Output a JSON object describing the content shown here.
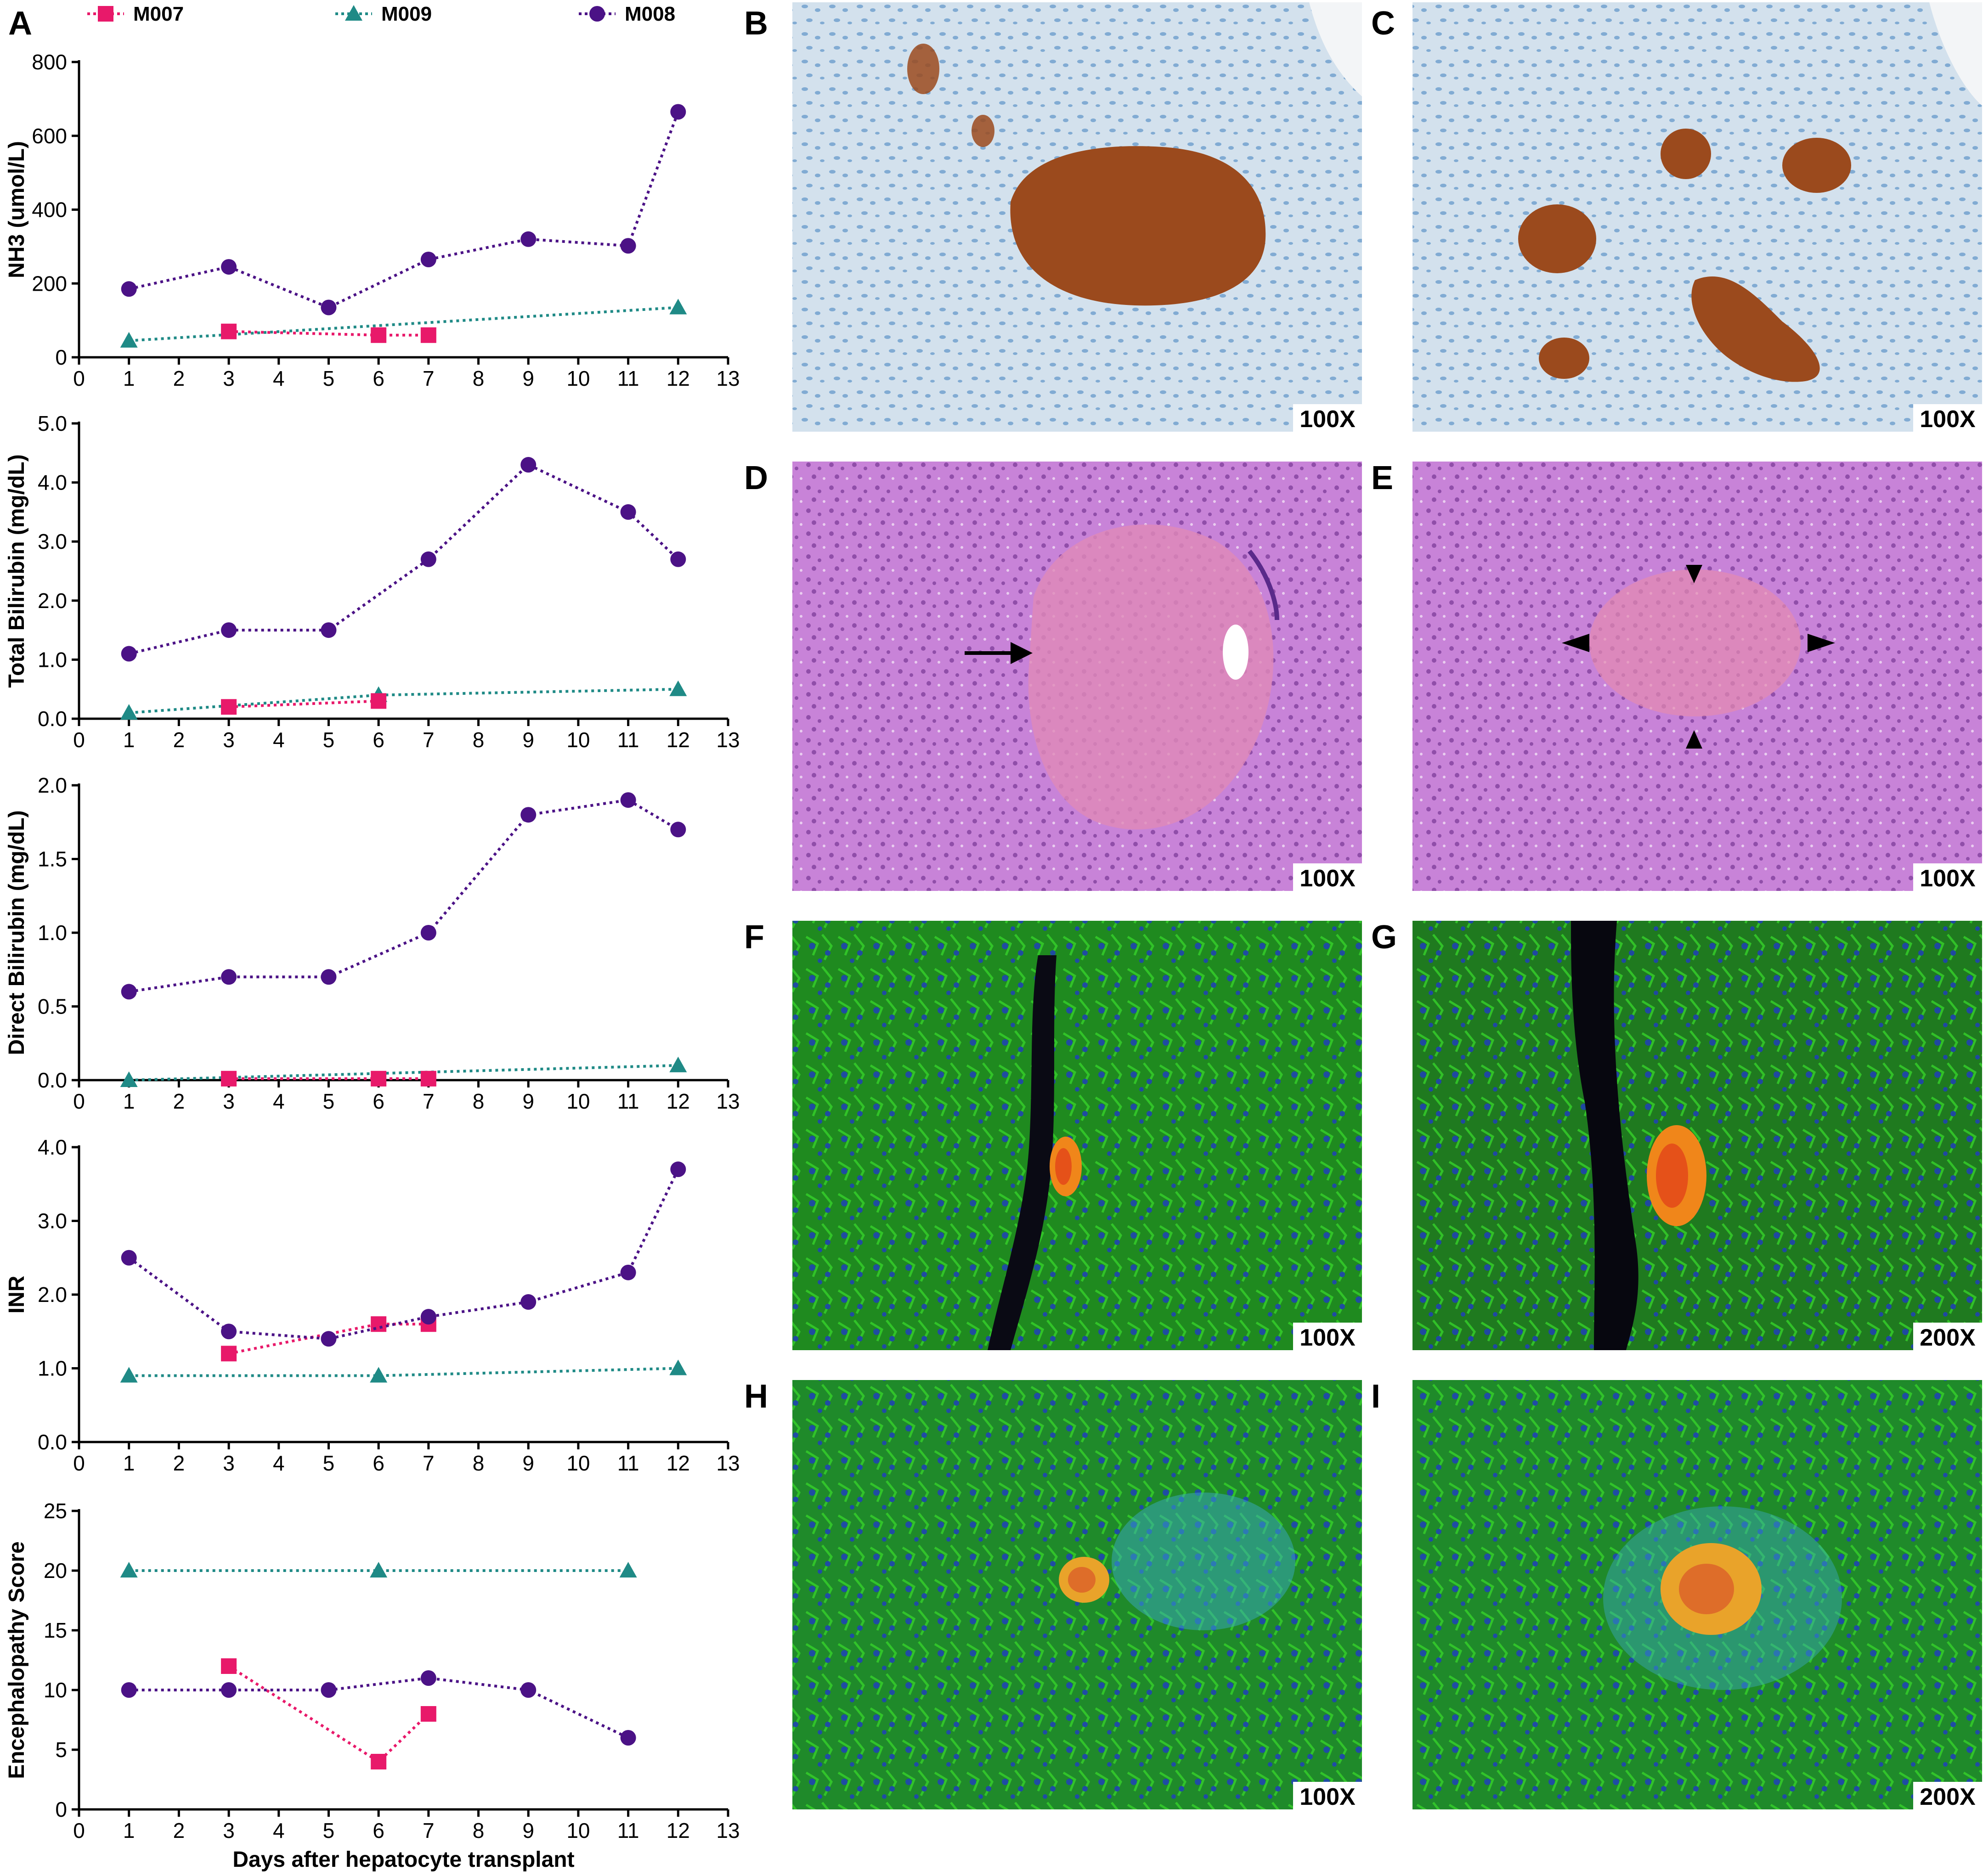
{
  "panel_labels": {
    "a": "A",
    "b": "B",
    "c": "C",
    "d": "D",
    "e": "E",
    "f": "F",
    "g": "G",
    "h": "H",
    "i": "I"
  },
  "legend": [
    {
      "name": "M007",
      "color": "#e8196a",
      "marker": "square"
    },
    {
      "name": "M009",
      "color": "#1f8a86",
      "marker": "triangle"
    },
    {
      "name": "M008",
      "color": "#4b1286",
      "marker": "circle"
    }
  ],
  "colors": {
    "M007": "#e8196a",
    "M009": "#1f8a86",
    "M008": "#4b1286",
    "ihc_background": "#d6e4ef",
    "ihc_nuclei": "#4a87bf",
    "ihc_stain": "#9a4a1c",
    "he_background": "#c97fd6",
    "if_green": "#2fb31f",
    "if_blue": "#1f3cc2",
    "if_orange": "#f08a1a"
  },
  "chart_data": [
    {
      "type": "line",
      "ylabel": "NH3 (umol/L)",
      "xlabel": "",
      "xlim": [
        0,
        13
      ],
      "ylim": [
        0,
        800
      ],
      "x_ticks": [
        "0",
        "1",
        "2",
        "3",
        "4",
        "5",
        "6",
        "7",
        "8",
        "9",
        "10",
        "11",
        "12",
        "13"
      ],
      "y_ticks": [
        "0",
        "200",
        "400",
        "600",
        "800"
      ],
      "series": [
        {
          "name": "M007",
          "x": [
            3,
            6,
            7
          ],
          "y": [
            70,
            60,
            60
          ]
        },
        {
          "name": "M009",
          "x": [
            1,
            12
          ],
          "y": [
            45,
            135
          ]
        },
        {
          "name": "M008",
          "x": [
            1,
            3,
            5,
            7,
            9,
            11,
            12
          ],
          "y": [
            185,
            245,
            135,
            265,
            320,
            302,
            665
          ]
        }
      ]
    },
    {
      "type": "line",
      "ylabel": "Total Bilirubin (mg/dL)",
      "xlabel": "",
      "xlim": [
        0,
        13
      ],
      "ylim": [
        0,
        5
      ],
      "x_ticks": [
        "0",
        "1",
        "2",
        "3",
        "4",
        "5",
        "6",
        "7",
        "8",
        "9",
        "10",
        "11",
        "12",
        "13"
      ],
      "y_ticks": [
        "0.0",
        "1.0",
        "2.0",
        "3.0",
        "4.0",
        "5.0"
      ],
      "series": [
        {
          "name": "M007",
          "x": [
            3,
            6
          ],
          "y": [
            0.2,
            0.3
          ]
        },
        {
          "name": "M009",
          "x": [
            1,
            6,
            12
          ],
          "y": [
            0.1,
            0.4,
            0.5
          ]
        },
        {
          "name": "M008",
          "x": [
            1,
            3,
            5,
            7,
            9,
            11,
            12
          ],
          "y": [
            1.1,
            1.5,
            1.5,
            2.7,
            4.3,
            3.5,
            2.7
          ]
        }
      ]
    },
    {
      "type": "line",
      "ylabel": "Direct Bilirubin (mg/dL)",
      "xlabel": "",
      "xlim": [
        0,
        13
      ],
      "ylim": [
        0,
        2
      ],
      "x_ticks": [
        "0",
        "1",
        "2",
        "3",
        "4",
        "5",
        "6",
        "7",
        "8",
        "9",
        "10",
        "11",
        "12",
        "13"
      ],
      "y_ticks": [
        "0.0",
        "0.5",
        "1.0",
        "1.5",
        "2.0"
      ],
      "series": [
        {
          "name": "M007",
          "x": [
            3,
            6,
            7
          ],
          "y": [
            0.01,
            0.01,
            0.01
          ]
        },
        {
          "name": "M009",
          "x": [
            1,
            12
          ],
          "y": [
            0.0,
            0.1
          ]
        },
        {
          "name": "M008",
          "x": [
            1,
            3,
            5,
            7,
            9,
            11,
            12
          ],
          "y": [
            0.6,
            0.7,
            0.7,
            1.0,
            1.8,
            1.9,
            1.7
          ]
        }
      ]
    },
    {
      "type": "line",
      "ylabel": "INR",
      "xlabel": "",
      "xlim": [
        0,
        13
      ],
      "ylim": [
        0,
        4
      ],
      "x_ticks": [
        "0",
        "1",
        "2",
        "3",
        "4",
        "5",
        "6",
        "7",
        "8",
        "9",
        "10",
        "11",
        "12",
        "13"
      ],
      "y_ticks": [
        "0.0",
        "1.0",
        "2.0",
        "3.0",
        "4.0"
      ],
      "series": [
        {
          "name": "M007",
          "x": [
            3,
            6,
            7
          ],
          "y": [
            1.2,
            1.6,
            1.6
          ]
        },
        {
          "name": "M009",
          "x": [
            1,
            6,
            12
          ],
          "y": [
            0.9,
            0.9,
            1.0
          ]
        },
        {
          "name": "M008",
          "x": [
            1,
            3,
            5,
            7,
            9,
            11,
            12
          ],
          "y": [
            2.5,
            1.5,
            1.4,
            1.7,
            1.9,
            2.3,
            3.7
          ]
        }
      ]
    },
    {
      "type": "line",
      "ylabel": "Encephalopathy Score",
      "xlabel": "Days after hepatocyte transplant",
      "xlim": [
        0,
        13
      ],
      "ylim": [
        0,
        25
      ],
      "x_ticks": [
        "0",
        "1",
        "2",
        "3",
        "4",
        "5",
        "6",
        "7",
        "8",
        "9",
        "10",
        "11",
        "12",
        "13"
      ],
      "y_ticks": [
        "0",
        "5",
        "10",
        "15",
        "20",
        "25"
      ],
      "series": [
        {
          "name": "M007",
          "x": [
            3,
            6,
            7
          ],
          "y": [
            12,
            4,
            8
          ]
        },
        {
          "name": "M009",
          "x": [
            1,
            6,
            11
          ],
          "y": [
            20,
            20,
            20
          ]
        },
        {
          "name": "M008",
          "x": [
            1,
            3,
            5,
            7,
            9,
            11
          ],
          "y": [
            10,
            10,
            10,
            11,
            10,
            6
          ]
        }
      ]
    }
  ],
  "micrographs": [
    {
      "id": "b",
      "type": "ihc",
      "magnification": "100X"
    },
    {
      "id": "c",
      "type": "ihc",
      "magnification": "100X"
    },
    {
      "id": "d",
      "type": "he",
      "magnification": "100X"
    },
    {
      "id": "e",
      "type": "he",
      "magnification": "100X"
    },
    {
      "id": "f",
      "type": "if",
      "magnification": "100X"
    },
    {
      "id": "g",
      "type": "if",
      "magnification": "200X"
    },
    {
      "id": "h",
      "type": "if",
      "magnification": "100X"
    },
    {
      "id": "i",
      "type": "if",
      "magnification": "200X"
    }
  ]
}
